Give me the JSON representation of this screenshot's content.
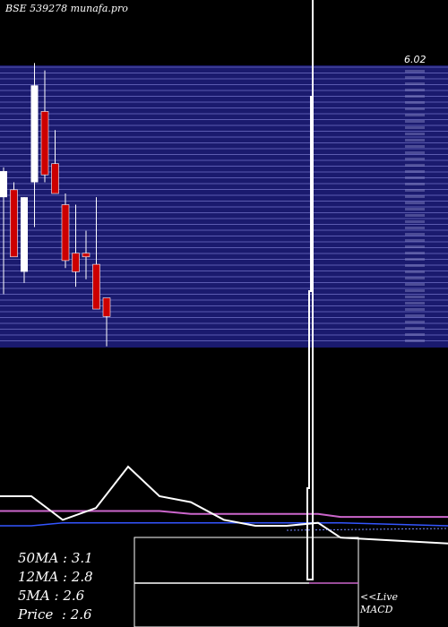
{
  "header": {
    "title": "BSE 539278 munafa.pro"
  },
  "price_axis": {
    "top_label": "6.02"
  },
  "stats": [
    {
      "label": "50MA",
      "value": "3.1"
    },
    {
      "label": "12MA",
      "value": "2.8"
    },
    {
      "label": "5MA",
      "value": "2.6"
    },
    {
      "label": "Price ",
      "value": "2.6"
    }
  ],
  "macd_panel": {
    "line1": "<<Live",
    "line2": "MACD"
  },
  "colors": {
    "band": "#1a1a6e",
    "band_line": "#5b5bb0",
    "up": "#ffffff",
    "down": "#cc0000",
    "ma_white": "#ffffff",
    "ma_purple": "#cc66cc",
    "ma_blue": "#3355ff"
  },
  "chart_data": {
    "type": "candlestick",
    "title": "BSE 539278 munafa.pro",
    "candles": [
      {
        "open": 4.2,
        "high": 4.6,
        "low": 2.9,
        "close": 4.55
      },
      {
        "open": 4.3,
        "high": 4.4,
        "low": 3.4,
        "close": 3.4
      },
      {
        "open": 3.2,
        "high": 4.2,
        "low": 3.05,
        "close": 4.2
      },
      {
        "open": 4.4,
        "high": 6.0,
        "low": 3.8,
        "close": 5.7
      },
      {
        "open": 5.35,
        "high": 5.9,
        "low": 4.4,
        "close": 4.5
      },
      {
        "open": 4.65,
        "high": 5.1,
        "low": 4.25,
        "close": 4.25
      },
      {
        "open": 4.1,
        "high": 4.25,
        "low": 3.25,
        "close": 3.35
      },
      {
        "open": 3.45,
        "high": 4.1,
        "low": 3.0,
        "close": 3.2
      },
      {
        "open": 3.45,
        "high": 3.75,
        "low": 3.1,
        "close": 3.4
      },
      {
        "open": 3.3,
        "high": 4.2,
        "low": 2.7,
        "close": 2.7
      },
      {
        "open": 2.85,
        "high": 2.85,
        "low": 2.2,
        "close": 2.6
      }
    ],
    "ma_white": [
      3.4,
      3.4,
      3.0,
      3.2,
      3.9,
      3.4,
      3.3,
      3.0,
      2.9,
      2.9,
      2.95,
      2.7,
      2.6
    ],
    "ma_purple": [
      3.15,
      3.15,
      3.15,
      3.15,
      3.15,
      3.15,
      3.1,
      3.1,
      3.1,
      3.1,
      3.1,
      3.05,
      3.05
    ],
    "ma_blue": [
      2.9,
      2.9,
      2.95,
      2.95,
      2.95,
      2.95,
      2.95,
      2.95,
      2.95,
      2.95,
      2.95,
      2.95,
      2.9
    ],
    "ylim": [
      2.1,
      6.1
    ],
    "stats": {
      "50MA": 3.1,
      "12MA": 2.8,
      "5MA": 2.6,
      "Price": 2.6
    }
  }
}
